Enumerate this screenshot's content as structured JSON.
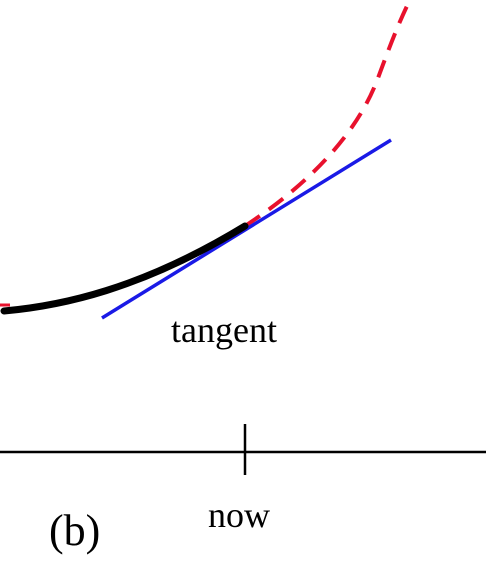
{
  "labels": {
    "tangent": "tangent",
    "now": "now",
    "panel": "(b)"
  },
  "colors": {
    "past_curve": "#000000",
    "future_curve": "#e8112d",
    "tangent_line": "#1a1ae6",
    "axis": "#000000",
    "background": "#ffffff"
  }
}
